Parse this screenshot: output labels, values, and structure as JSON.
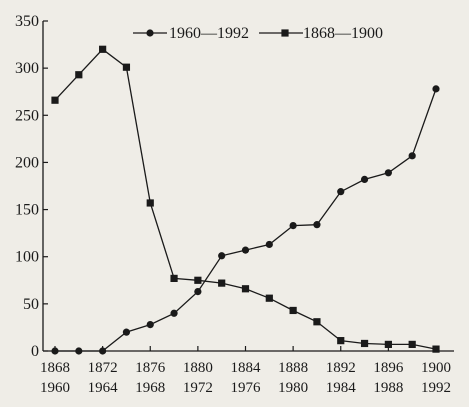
{
  "chart_data": {
    "type": "line",
    "title": "",
    "xlabel": "",
    "ylabel": "",
    "ylim": [
      0,
      350
    ],
    "yticks": [
      "0",
      "50",
      "100",
      "150",
      "200",
      "250",
      "300",
      "350"
    ],
    "x_tick_labels_top": [
      "1868",
      "1872",
      "1876",
      "1880",
      "1884",
      "1888",
      "1892",
      "1896",
      "1900"
    ],
    "x_tick_labels_bottom": [
      "1960",
      "1964",
      "1968",
      "1972",
      "1976",
      "1980",
      "1984",
      "1988",
      "1992"
    ],
    "grid": false,
    "legend_position": "top",
    "series": [
      {
        "name": "1960—1992",
        "marker": "circle",
        "x": [
          1960,
          1962,
          1964,
          1966,
          1968,
          1970,
          1972,
          1974,
          1976,
          1978,
          1980,
          1982,
          1984,
          1986,
          1988,
          1990,
          1992
        ],
        "values": [
          0,
          0,
          0,
          20,
          28,
          40,
          63,
          101,
          107,
          113,
          133,
          134,
          169,
          182,
          189,
          207,
          278
        ]
      },
      {
        "name": "1868—1900",
        "marker": "square",
        "x": [
          1868,
          1870,
          1872,
          1874,
          1876,
          1878,
          1880,
          1882,
          1884,
          1886,
          1888,
          1890,
          1892,
          1894,
          1896,
          1898,
          1900
        ],
        "values": [
          266,
          293,
          320,
          301,
          157,
          77,
          75,
          72,
          66,
          56,
          43,
          31,
          11,
          8,
          7,
          7,
          2
        ]
      }
    ]
  }
}
